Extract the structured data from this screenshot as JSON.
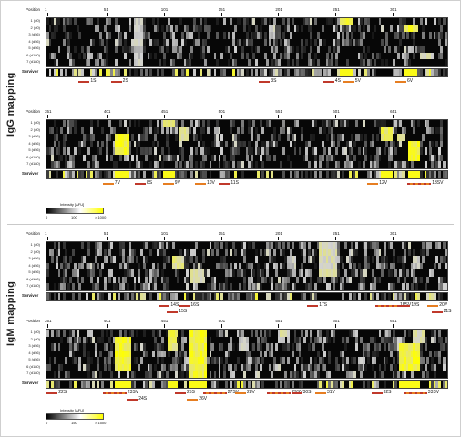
{
  "titles": {
    "igg": "IgG mapping",
    "igm": "IgM mapping"
  },
  "labels": {
    "position": "Position",
    "survivor": "Survivor"
  },
  "sera": [
    "1 (d0)",
    "2 (d0)",
    "3 (d56)",
    "4 (d56)",
    "5 (d56)",
    "6 (d180)",
    "7 (d180)"
  ],
  "tick_rows": {
    "first": [
      "1",
      "51",
      "101",
      "151",
      "201",
      "251",
      "301"
    ],
    "second": [
      "351",
      "401",
      "451",
      "501",
      "551",
      "601",
      "651"
    ]
  },
  "legends": {
    "igg": {
      "title": "Intensity [AFU]",
      "min": "0",
      "mid": "100",
      "max": "> 1000"
    },
    "igm": {
      "title": "Intensity [AFU]",
      "min": "0",
      "mid": "150",
      "max": "> 1500"
    }
  },
  "peptides": {
    "igg1": [
      "1S",
      "2S",
      "3S",
      "4S",
      "5V",
      "6V"
    ],
    "igg2": [
      "7V",
      "8S",
      "9V",
      "10V",
      "11S",
      "12V",
      "13SV"
    ],
    "igm1": [
      "14S",
      "15S",
      "16S",
      "17S",
      "18SV",
      "19S",
      "20V",
      "21S"
    ],
    "igm2": [
      "22S",
      "23SV",
      "24S",
      "25S",
      "26V",
      "27SV",
      "28V",
      "29SV",
      "30S",
      "31V",
      "32S",
      "33SV"
    ]
  },
  "colors": {
    "serum_peptide": "#c0392b",
    "vaccine_peptide": "#e67e22",
    "high": "#ffff00",
    "background": "#070707"
  }
}
